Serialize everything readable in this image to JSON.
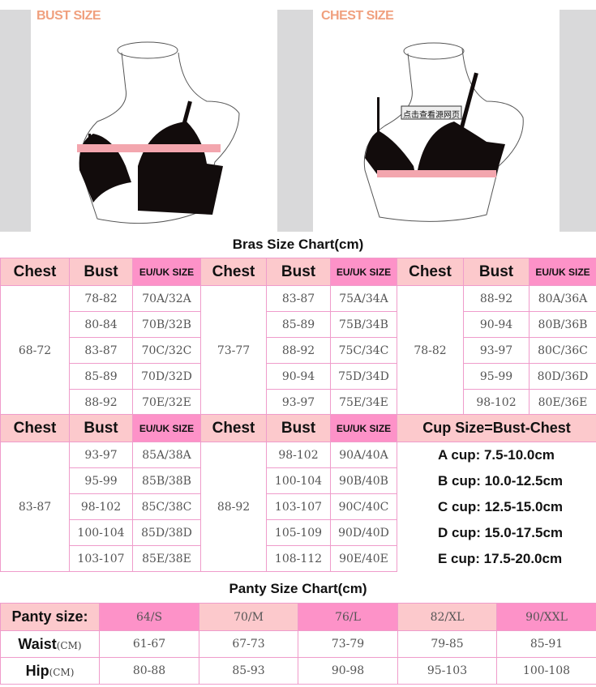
{
  "images": {
    "bust_label": "BUST SIZE",
    "chest_label": "CHEST SIZE",
    "watermark": "点击查看源网页"
  },
  "bras": {
    "title": "Bras Size Chart(cm)",
    "headers": {
      "chest": "Chest",
      "bust": "Bust",
      "eu_uk": "EU/UK SIZE"
    },
    "groups": [
      {
        "chest": "68-72",
        "rows": [
          [
            "78-82",
            "70A/32A"
          ],
          [
            "80-84",
            "70B/32B"
          ],
          [
            "83-87",
            "70C/32C"
          ],
          [
            "85-89",
            "70D/32D"
          ],
          [
            "88-92",
            "70E/32E"
          ]
        ]
      },
      {
        "chest": "73-77",
        "rows": [
          [
            "83-87",
            "75A/34A"
          ],
          [
            "85-89",
            "75B/34B"
          ],
          [
            "88-92",
            "75C/34C"
          ],
          [
            "90-94",
            "75D/34D"
          ],
          [
            "93-97",
            "75E/34E"
          ]
        ]
      },
      {
        "chest": "78-82",
        "rows": [
          [
            "88-92",
            "80A/36A"
          ],
          [
            "90-94",
            "80B/36B"
          ],
          [
            "93-97",
            "80C/36C"
          ],
          [
            "95-99",
            "80D/36D"
          ],
          [
            "98-102",
            "80E/36E"
          ]
        ]
      },
      {
        "chest": "83-87",
        "rows": [
          [
            "93-97",
            "85A/38A"
          ],
          [
            "95-99",
            "85B/38B"
          ],
          [
            "98-102",
            "85C/38C"
          ],
          [
            "100-104",
            "85D/38D"
          ],
          [
            "103-107",
            "85E/38E"
          ]
        ]
      },
      {
        "chest": "88-92",
        "rows": [
          [
            "98-102",
            "90A/40A"
          ],
          [
            "100-104",
            "90B/40B"
          ],
          [
            "103-107",
            "90C/40C"
          ],
          [
            "105-109",
            "90D/40D"
          ],
          [
            "108-112",
            "90E/40E"
          ]
        ]
      }
    ],
    "cup": {
      "title": "Cup Size=Bust-Chest",
      "items": [
        "A cup:  7.5-10.0cm",
        "B cup: 10.0-12.5cm",
        "C cup: 12.5-15.0cm",
        "D cup: 15.0-17.5cm",
        "E cup: 17.5-20.0cm"
      ]
    }
  },
  "panty": {
    "title": "Panty Size Chart(cm)",
    "size_label": "Panty size:",
    "sizes": [
      "64/S",
      "70/M",
      "76/L",
      "82/XL",
      "90/XXL"
    ],
    "unit": "(CM)",
    "rows": [
      {
        "label": "Waist",
        "values": [
          "61-67",
          "67-73",
          "73-79",
          "79-85",
          "85-91"
        ]
      },
      {
        "label": "Hip",
        "values": [
          "80-88",
          "85-93",
          "90-98",
          "95-103",
          "100-108"
        ]
      }
    ]
  },
  "colors": {
    "light_pink": "#fcc9cc",
    "hot_pink": "#fd92c8",
    "border": "#ef9ccb",
    "label_orange": "#f0a07e"
  }
}
